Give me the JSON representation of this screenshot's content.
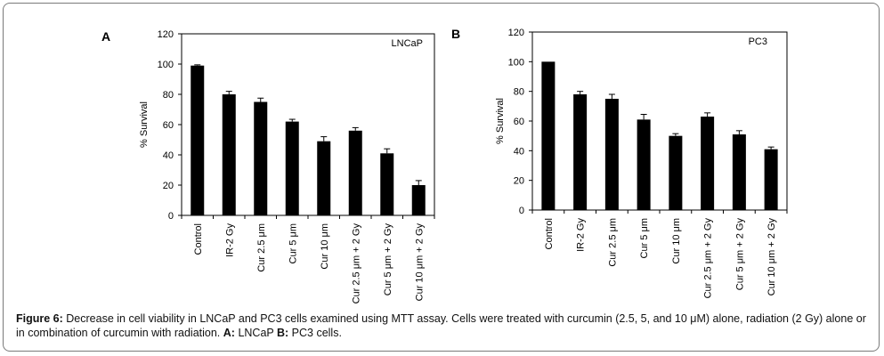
{
  "caption": {
    "label": "Figure 6:",
    "text": " Decrease in cell viability in LNCaP and PC3 cells examined using MTT assay. Cells were treated with curcumin (2.5, 5, and 10 μM) alone, radiation (2 Gy) alone or in combination of curcumin with radiation. ",
    "a_label": "A:",
    "a_text": " LNCaP ",
    "b_label": "B:",
    "b_text": " PC3 cells."
  },
  "chart_data": [
    {
      "type": "bar",
      "panel": "A",
      "plot_label": "LNCaP",
      "ylabel": "% Survival",
      "xlabel": "",
      "ylim": [
        0,
        120
      ],
      "yticks": [
        0,
        20,
        40,
        60,
        80,
        100,
        120
      ],
      "categories": [
        "Control",
        "IR-2 Gy",
        "Cur 2.5 μm",
        "Cur 5 μm",
        "Cur 10 μm",
        "Cur 2.5 μm + 2 Gy",
        "Cur 5 μm + 2 Gy",
        "Cur 10 μm + 2 Gy"
      ],
      "values": [
        99,
        80,
        75,
        62,
        49,
        56,
        41,
        20
      ],
      "errors": [
        0.5,
        2,
        2.5,
        1.5,
        3,
        2,
        3,
        3
      ],
      "bar_color": "#000000",
      "grid": false,
      "legend": "none"
    },
    {
      "type": "bar",
      "panel": "B",
      "plot_label": "PC3",
      "ylabel": "% Survival",
      "xlabel": "",
      "ylim": [
        0,
        120
      ],
      "yticks": [
        0,
        20,
        40,
        60,
        80,
        100,
        120
      ],
      "categories": [
        "Control",
        "IR-2 Gy",
        "Cur 2.5 μm",
        "Cur 5 μm",
        "Cur 10 μm",
        "Cur 2.5 μm + 2 Gy",
        "Cur 5 μm + 2 Gy",
        "Cur 10 μm + 2 Gy"
      ],
      "values": [
        100,
        78,
        75,
        61,
        50,
        63,
        51,
        41
      ],
      "errors": [
        0,
        2,
        3,
        3.5,
        1.5,
        2.5,
        2.5,
        1.5
      ],
      "bar_color": "#000000",
      "grid": false,
      "legend": "none"
    }
  ]
}
